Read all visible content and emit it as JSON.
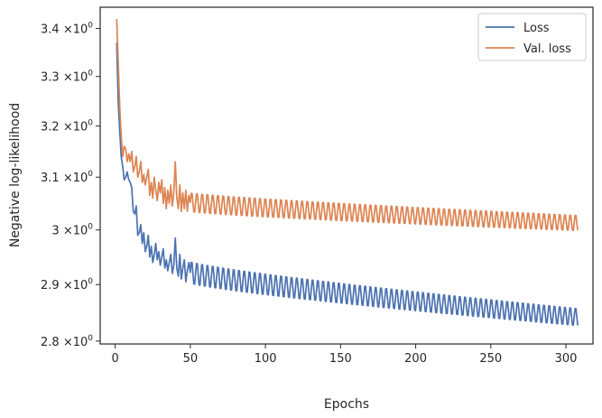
{
  "chart_data": {
    "type": "line",
    "xlabel": "Epochs",
    "ylabel": "Negative log-likelihood",
    "xlim": [
      -10,
      318
    ],
    "ylim": [
      2.795,
      3.445
    ],
    "y_scale": "log",
    "grid": false,
    "legend_position": "top-right",
    "x_ticks": [
      0,
      50,
      100,
      150,
      200,
      250,
      300
    ],
    "y_ticks": [
      {
        "value": 2.8,
        "mantissa": "2.8"
      },
      {
        "value": 2.9,
        "mantissa": "2.9"
      },
      {
        "value": 3.0,
        "mantissa": "3"
      },
      {
        "value": 3.1,
        "mantissa": "3.1"
      },
      {
        "value": 3.2,
        "mantissa": "3.2"
      },
      {
        "value": 3.3,
        "mantissa": "3.3"
      },
      {
        "value": 3.4,
        "mantissa": "3.4"
      }
    ],
    "y_tick_multiplier": "×10",
    "y_tick_exponent": "0",
    "series": [
      {
        "name": "Loss",
        "color": "#4c72b0",
        "points": [
          [
            1,
            3.37
          ],
          [
            2,
            3.25
          ],
          [
            3,
            3.19
          ],
          [
            4,
            3.14
          ],
          [
            5,
            3.12
          ],
          [
            6,
            3.095
          ],
          [
            7,
            3.1
          ],
          [
            8,
            3.11
          ],
          [
            9,
            3.095
          ],
          [
            10,
            3.09
          ],
          [
            11,
            3.08
          ],
          [
            12,
            3.035
          ],
          [
            13,
            3.03
          ],
          [
            14,
            3.045
          ],
          [
            15,
            2.99
          ],
          [
            16,
            2.995
          ],
          [
            17,
            3.01
          ],
          [
            18,
            2.975
          ],
          [
            19,
            2.995
          ],
          [
            20,
            2.96
          ],
          [
            21,
            2.97
          ],
          [
            22,
            2.99
          ],
          [
            23,
            2.95
          ],
          [
            24,
            2.97
          ],
          [
            25,
            2.94
          ],
          [
            26,
            2.955
          ],
          [
            27,
            2.975
          ],
          [
            28,
            2.945
          ],
          [
            29,
            2.96
          ],
          [
            30,
            2.935
          ],
          [
            31,
            2.95
          ],
          [
            32,
            2.965
          ],
          [
            33,
            2.93
          ],
          [
            34,
            2.945
          ],
          [
            35,
            2.925
          ],
          [
            36,
            2.94
          ],
          [
            37,
            2.955
          ],
          [
            38,
            2.92
          ],
          [
            39,
            2.935
          ],
          [
            40,
            2.985
          ],
          [
            41,
            2.93
          ],
          [
            42,
            2.915
          ],
          [
            43,
            2.955
          ],
          [
            44,
            2.91
          ],
          [
            45,
            2.93
          ],
          [
            46,
            2.945
          ],
          [
            47,
            2.905
          ],
          [
            48,
            2.925
          ],
          [
            49,
            2.94
          ]
        ],
        "osc": {
          "start": 50,
          "end": 308,
          "period": 3.5,
          "level_start": 2.922,
          "level_end": 2.842,
          "amp_start": 0.022,
          "amp_end": 0.017
        }
      },
      {
        "name": "Val. loss",
        "color": "#dd8452",
        "points": [
          [
            1,
            3.42
          ],
          [
            2,
            3.33
          ],
          [
            3,
            3.24
          ],
          [
            4,
            3.18
          ],
          [
            5,
            3.14
          ],
          [
            6,
            3.16
          ],
          [
            7,
            3.155
          ],
          [
            8,
            3.13
          ],
          [
            9,
            3.145
          ],
          [
            10,
            3.13
          ],
          [
            11,
            3.15
          ],
          [
            12,
            3.11
          ],
          [
            13,
            3.12
          ],
          [
            14,
            3.14
          ],
          [
            15,
            3.1
          ],
          [
            16,
            3.11
          ],
          [
            17,
            3.13
          ],
          [
            18,
            3.09
          ],
          [
            19,
            3.105
          ],
          [
            20,
            3.085
          ],
          [
            21,
            3.1
          ],
          [
            22,
            3.115
          ],
          [
            23,
            3.065
          ],
          [
            24,
            3.09
          ],
          [
            25,
            3.06
          ],
          [
            26,
            3.1
          ],
          [
            27,
            3.075
          ],
          [
            28,
            3.055
          ],
          [
            29,
            3.09
          ],
          [
            30,
            3.07
          ],
          [
            31,
            3.095
          ],
          [
            32,
            3.05
          ],
          [
            33,
            3.08
          ],
          [
            34,
            3.04
          ],
          [
            35,
            3.075
          ],
          [
            36,
            3.05
          ],
          [
            37,
            3.085
          ],
          [
            38,
            3.045
          ],
          [
            39,
            3.07
          ],
          [
            40,
            3.13
          ],
          [
            41,
            3.06
          ],
          [
            42,
            3.04
          ],
          [
            43,
            3.085
          ],
          [
            44,
            3.035
          ],
          [
            45,
            3.07
          ],
          [
            46,
            3.04
          ],
          [
            47,
            3.075
          ],
          [
            48,
            3.035
          ],
          [
            49,
            3.065
          ]
        ],
        "osc": {
          "start": 50,
          "end": 308,
          "period": 3.5,
          "level_start": 3.052,
          "level_end": 3.013,
          "amp_start": 0.02,
          "amp_end": 0.016
        }
      }
    ]
  }
}
